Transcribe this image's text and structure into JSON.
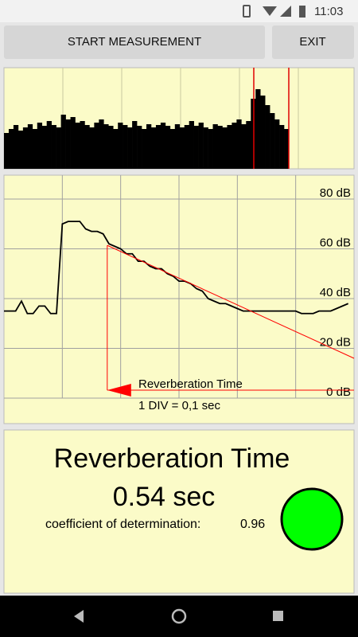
{
  "status_bar": {
    "time": "11:03"
  },
  "buttons": {
    "start": "START MEASUREMENT",
    "exit": "EXIT"
  },
  "waveform": {
    "ylim": [
      0,
      127
    ],
    "color": "#000000",
    "values": [
      45,
      50,
      55,
      48,
      52,
      56,
      50,
      58,
      54,
      60,
      55,
      52,
      68,
      62,
      65,
      58,
      60,
      55,
      52,
      58,
      62,
      56,
      54,
      50,
      58,
      55,
      52,
      60,
      54,
      50,
      56,
      52,
      55,
      58,
      54,
      50,
      56,
      52,
      55,
      60,
      54,
      58,
      52,
      50,
      56,
      54,
      52,
      55,
      58,
      62,
      56,
      60,
      88,
      100,
      92,
      80,
      70,
      62,
      55,
      50
    ]
  },
  "decay_chart": {
    "type": "line",
    "x": [
      0,
      0.01,
      0.02,
      0.03,
      0.04,
      0.05,
      0.06,
      0.07,
      0.08,
      0.09,
      0.1,
      0.11,
      0.12,
      0.13,
      0.14,
      0.15,
      0.16,
      0.17,
      0.18,
      0.19,
      0.2,
      0.21,
      0.22,
      0.23,
      0.24,
      0.25,
      0.26,
      0.27,
      0.28,
      0.29,
      0.3,
      0.31,
      0.32,
      0.33,
      0.34,
      0.35,
      0.36,
      0.37,
      0.38,
      0.39,
      0.4,
      0.41,
      0.42,
      0.43,
      0.44,
      0.45,
      0.46,
      0.47,
      0.48,
      0.49,
      0.5,
      0.51,
      0.52,
      0.53,
      0.54,
      0.55,
      0.56,
      0.57,
      0.58,
      0.59
    ],
    "xlim": [
      0,
      0.6
    ],
    "xticks": [
      0.1,
      0.2,
      0.3,
      0.4,
      0.5
    ],
    "ylim": [
      0,
      89.6
    ],
    "yticks": [
      {
        "value": 0,
        "label": "0 dB"
      },
      {
        "value": 20,
        "label": "20 dB"
      },
      {
        "value": 40,
        "label": "40 dB"
      },
      {
        "value": 60,
        "label": "60 dB"
      },
      {
        "value": 80,
        "label": "80 dB"
      }
    ],
    "grid": true,
    "series": [
      {
        "color": "#000000",
        "values": [
          35,
          35,
          35,
          39,
          34,
          34,
          37,
          37,
          34,
          34,
          70,
          71,
          71,
          71,
          68,
          67,
          67,
          66,
          62,
          61,
          60,
          58,
          58,
          55,
          55,
          53,
          52,
          52,
          50,
          49,
          47,
          47,
          46,
          44,
          43,
          40,
          39,
          38,
          38,
          37,
          36,
          35,
          35,
          35,
          35,
          35,
          35,
          35,
          35,
          35,
          35,
          34,
          34,
          34,
          35,
          35,
          35,
          36,
          37,
          38
        ]
      }
    ],
    "fit_line": {
      "color": "#ff0000",
      "x": [
        0.177,
        0.6
      ],
      "values": [
        61.4,
        16
      ]
    },
    "annotation": "Reverberation Time",
    "scale_note": "1 DIV = 0,1 sec"
  },
  "result": {
    "title": "Reverberation Time",
    "value": "0.54 sec",
    "r2_label": "coefficient of determination:",
    "r2": 0.96
  }
}
